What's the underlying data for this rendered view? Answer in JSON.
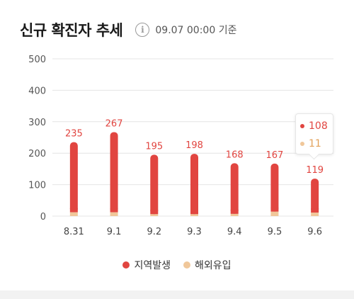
{
  "header": {
    "title": "신규 확진자 추세",
    "timestamp": "09.07 00:00 기준",
    "info_icon": "info-icon"
  },
  "colors": {
    "domestic": "#e14540",
    "overseas": "#f0c79a",
    "grid": "#e4e4e4"
  },
  "tooltip": {
    "domestic": "108",
    "overseas": "11"
  },
  "chart_data": {
    "type": "bar",
    "stacked": true,
    "categories": [
      "8.31",
      "9.1",
      "9.2",
      "9.3",
      "9.4",
      "9.5",
      "9.6"
    ],
    "series": [
      {
        "name": "지역발생",
        "values": [
          223,
          255,
          189,
          192,
          161,
          153,
          108
        ]
      },
      {
        "name": "해외유입",
        "values": [
          12,
          12,
          6,
          6,
          7,
          14,
          11
        ]
      }
    ],
    "totals": [
      235,
      267,
      195,
      198,
      168,
      167,
      119
    ],
    "yticks": [
      0,
      100,
      200,
      300,
      400,
      500
    ],
    "ylim": [
      0,
      500
    ],
    "grid": true,
    "legend": "bottom-center"
  }
}
